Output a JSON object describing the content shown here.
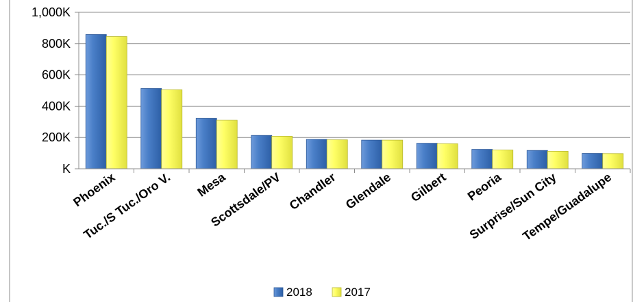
{
  "chart_data": {
    "type": "bar",
    "title": "",
    "xlabel": "",
    "ylabel": "",
    "categories": [
      "Phoenix",
      "Tuc./S Tuc./Oro V.",
      "Mesa",
      "Scottsdale/PV",
      "Chandler",
      "Glendale",
      "Gilbert",
      "Peoria",
      "Surprise/Sun City",
      "Tempe/Guadalupe"
    ],
    "series": [
      {
        "name": "2018",
        "color": "#4A7FC8",
        "values": [
          858000,
          513000,
          322000,
          213000,
          188000,
          183000,
          163000,
          124000,
          117000,
          98000
        ]
      },
      {
        "name": "2017",
        "color": "#FFFF66",
        "values": [
          845000,
          505000,
          310000,
          208000,
          185000,
          183000,
          160000,
          120000,
          112000,
          97000
        ]
      }
    ],
    "ylim": [
      0,
      1000000
    ],
    "yticks": [
      0,
      200000,
      400000,
      600000,
      800000,
      1000000
    ],
    "ytick_labels": [
      "K",
      "200K",
      "400K",
      "600K",
      "800K",
      "1,000K"
    ],
    "grid": true,
    "legend_position": "bottom"
  }
}
